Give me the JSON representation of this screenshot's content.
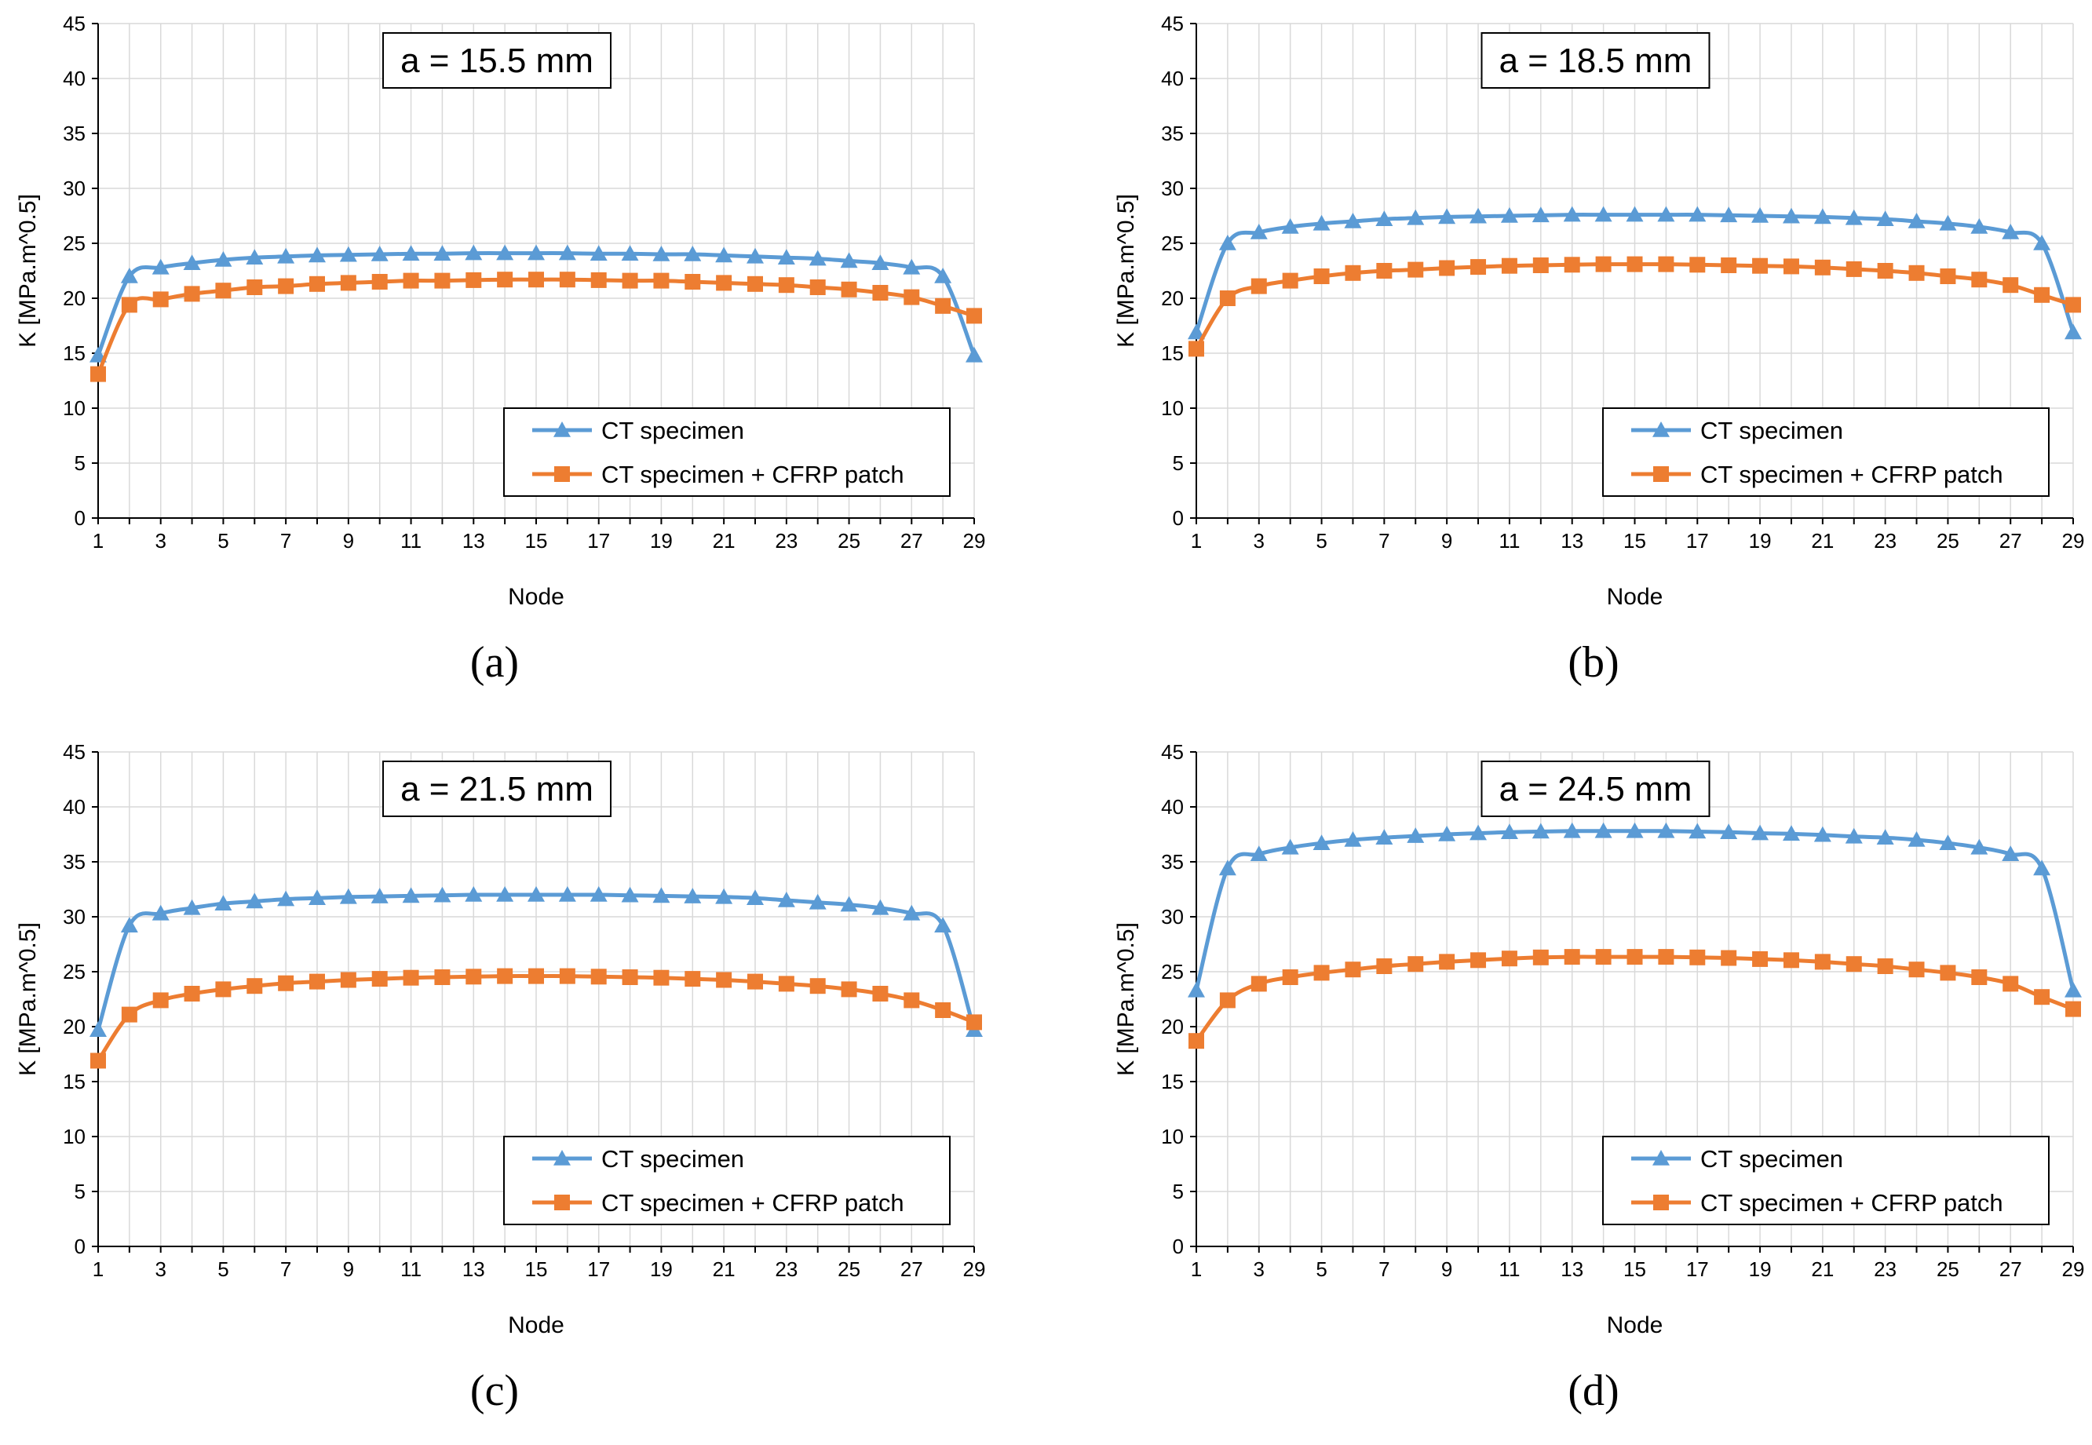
{
  "chart_data": [
    {
      "type": "line",
      "panel_label": "(a)",
      "title": "a = 15.5 mm",
      "xlabel": "Node",
      "ylabel": "K [MPa.m^0.5]",
      "xlim": [
        1,
        29
      ],
      "ylim": [
        0,
        45
      ],
      "xticks": [
        1,
        3,
        5,
        7,
        9,
        11,
        13,
        15,
        17,
        19,
        21,
        23,
        25,
        27,
        29
      ],
      "yticks": [
        0,
        5,
        10,
        15,
        20,
        25,
        30,
        35,
        40,
        45
      ],
      "grid": true,
      "legend_position": "bottom-right",
      "x": [
        1,
        2,
        3,
        4,
        5,
        6,
        7,
        8,
        9,
        10,
        11,
        12,
        13,
        14,
        15,
        16,
        17,
        18,
        19,
        20,
        21,
        22,
        23,
        24,
        25,
        26,
        27,
        28,
        29
      ],
      "series": [
        {
          "name": "CT specimen",
          "color": "#5B9BD5",
          "marker": "triangle",
          "values": [
            14.8,
            22.0,
            22.8,
            23.2,
            23.5,
            23.7,
            23.8,
            23.9,
            23.95,
            24.0,
            24.05,
            24.05,
            24.1,
            24.1,
            24.1,
            24.1,
            24.05,
            24.05,
            24.0,
            24.0,
            23.9,
            23.8,
            23.7,
            23.6,
            23.4,
            23.2,
            22.8,
            22.0,
            14.8
          ]
        },
        {
          "name": "CT specimen + CFRP patch",
          "color": "#ED7D31",
          "marker": "square",
          "values": [
            13.1,
            19.4,
            19.9,
            20.4,
            20.7,
            21.0,
            21.1,
            21.3,
            21.4,
            21.5,
            21.6,
            21.6,
            21.65,
            21.7,
            21.7,
            21.7,
            21.65,
            21.6,
            21.6,
            21.5,
            21.4,
            21.3,
            21.2,
            21.0,
            20.8,
            20.5,
            20.1,
            19.3,
            18.4
          ]
        }
      ]
    },
    {
      "type": "line",
      "panel_label": "(b)",
      "title": "a = 18.5 mm",
      "xlabel": "Node",
      "ylabel": "K [MPa.m^0.5]",
      "xlim": [
        1,
        29
      ],
      "ylim": [
        0,
        45
      ],
      "xticks": [
        1,
        3,
        5,
        7,
        9,
        11,
        13,
        15,
        17,
        19,
        21,
        23,
        25,
        27,
        29
      ],
      "yticks": [
        0,
        5,
        10,
        15,
        20,
        25,
        30,
        35,
        40,
        45
      ],
      "grid": true,
      "legend_position": "bottom-right",
      "x": [
        1,
        2,
        3,
        4,
        5,
        6,
        7,
        8,
        9,
        10,
        11,
        12,
        13,
        14,
        15,
        16,
        17,
        18,
        19,
        20,
        21,
        22,
        23,
        24,
        25,
        26,
        27,
        28,
        29
      ],
      "series": [
        {
          "name": "CT specimen",
          "color": "#5B9BD5",
          "marker": "triangle",
          "values": [
            16.9,
            25.0,
            26.0,
            26.5,
            26.8,
            27.0,
            27.2,
            27.3,
            27.4,
            27.45,
            27.5,
            27.55,
            27.6,
            27.6,
            27.6,
            27.6,
            27.6,
            27.55,
            27.5,
            27.45,
            27.4,
            27.3,
            27.2,
            27.0,
            26.8,
            26.5,
            26.0,
            25.0,
            16.9
          ]
        },
        {
          "name": "CT specimen + CFRP patch",
          "color": "#ED7D31",
          "marker": "square",
          "values": [
            15.4,
            20.0,
            21.1,
            21.6,
            22.0,
            22.3,
            22.5,
            22.6,
            22.75,
            22.85,
            22.95,
            23.0,
            23.05,
            23.1,
            23.1,
            23.1,
            23.05,
            23.0,
            22.95,
            22.9,
            22.8,
            22.65,
            22.5,
            22.3,
            22.0,
            21.7,
            21.2,
            20.3,
            19.4
          ]
        }
      ]
    },
    {
      "type": "line",
      "panel_label": "(c)",
      "title": "a = 21.5 mm",
      "xlabel": "Node",
      "ylabel": "K [MPa.m^0.5]",
      "xlim": [
        1,
        29
      ],
      "ylim": [
        0,
        45
      ],
      "xticks": [
        1,
        3,
        5,
        7,
        9,
        11,
        13,
        15,
        17,
        19,
        21,
        23,
        25,
        27,
        29
      ],
      "yticks": [
        0,
        5,
        10,
        15,
        20,
        25,
        30,
        35,
        40,
        45
      ],
      "grid": true,
      "legend_position": "bottom-right",
      "x": [
        1,
        2,
        3,
        4,
        5,
        6,
        7,
        8,
        9,
        10,
        11,
        12,
        13,
        14,
        15,
        16,
        17,
        18,
        19,
        20,
        21,
        22,
        23,
        24,
        25,
        26,
        27,
        28,
        29
      ],
      "series": [
        {
          "name": "CT specimen",
          "color": "#5B9BD5",
          "marker": "triangle",
          "values": [
            19.7,
            29.2,
            30.3,
            30.8,
            31.2,
            31.4,
            31.6,
            31.7,
            31.8,
            31.85,
            31.9,
            31.95,
            32.0,
            32.0,
            32.0,
            32.0,
            32.0,
            31.95,
            31.9,
            31.85,
            31.8,
            31.7,
            31.5,
            31.3,
            31.1,
            30.8,
            30.3,
            29.2,
            19.7
          ]
        },
        {
          "name": "CT specimen + CFRP patch",
          "color": "#ED7D31",
          "marker": "square",
          "values": [
            16.9,
            21.1,
            22.4,
            23.0,
            23.4,
            23.7,
            23.95,
            24.1,
            24.25,
            24.35,
            24.45,
            24.5,
            24.55,
            24.6,
            24.6,
            24.6,
            24.55,
            24.5,
            24.45,
            24.35,
            24.25,
            24.1,
            23.9,
            23.7,
            23.4,
            23.0,
            22.4,
            21.5,
            20.4
          ]
        }
      ]
    },
    {
      "type": "line",
      "panel_label": "(d)",
      "title": "a = 24.5 mm",
      "xlabel": "Node",
      "ylabel": "K [MPa.m^0.5]",
      "xlim": [
        1,
        29
      ],
      "ylim": [
        0,
        45
      ],
      "xticks": [
        1,
        3,
        5,
        7,
        9,
        11,
        13,
        15,
        17,
        19,
        21,
        23,
        25,
        27,
        29
      ],
      "yticks": [
        0,
        5,
        10,
        15,
        20,
        25,
        30,
        35,
        40,
        45
      ],
      "grid": true,
      "legend_position": "bottom-right",
      "x": [
        1,
        2,
        3,
        4,
        5,
        6,
        7,
        8,
        9,
        10,
        11,
        12,
        13,
        14,
        15,
        16,
        17,
        18,
        19,
        20,
        21,
        22,
        23,
        24,
        25,
        26,
        27,
        28,
        29
      ],
      "series": [
        {
          "name": "CT specimen",
          "color": "#5B9BD5",
          "marker": "triangle",
          "values": [
            23.3,
            34.4,
            35.7,
            36.3,
            36.7,
            37.0,
            37.2,
            37.35,
            37.5,
            37.6,
            37.7,
            37.75,
            37.8,
            37.8,
            37.8,
            37.8,
            37.75,
            37.7,
            37.6,
            37.55,
            37.45,
            37.3,
            37.2,
            37.0,
            36.7,
            36.3,
            35.7,
            34.4,
            23.3
          ]
        },
        {
          "name": "CT specimen + CFRP patch",
          "color": "#ED7D31",
          "marker": "square",
          "values": [
            18.7,
            22.4,
            23.9,
            24.5,
            24.9,
            25.2,
            25.5,
            25.7,
            25.9,
            26.05,
            26.2,
            26.3,
            26.35,
            26.35,
            26.35,
            26.35,
            26.3,
            26.25,
            26.15,
            26.05,
            25.9,
            25.7,
            25.5,
            25.2,
            24.9,
            24.5,
            23.9,
            22.7,
            21.6
          ]
        }
      ]
    }
  ]
}
